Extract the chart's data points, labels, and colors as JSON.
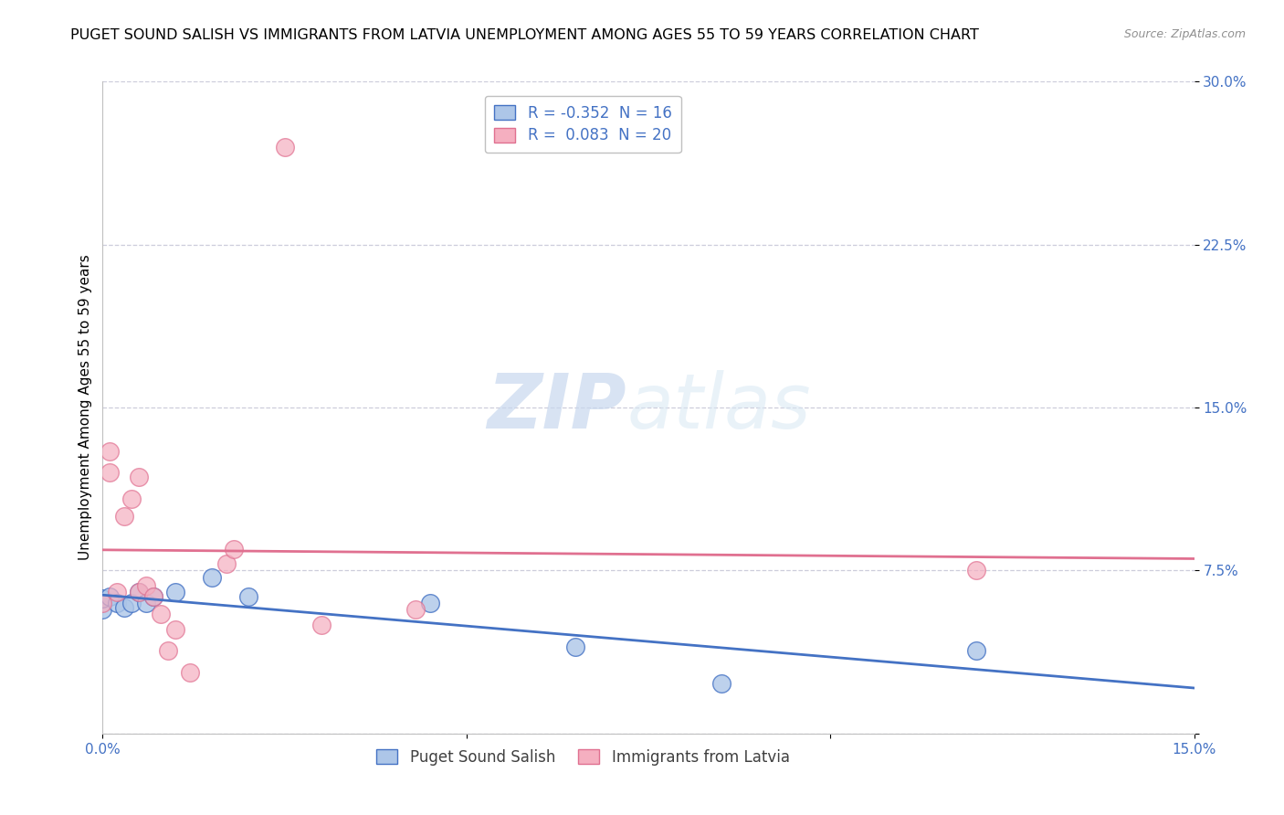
{
  "title": "PUGET SOUND SALISH VS IMMIGRANTS FROM LATVIA UNEMPLOYMENT AMONG AGES 55 TO 59 YEARS CORRELATION CHART",
  "source": "Source: ZipAtlas.com",
  "ylabel": "Unemployment Among Ages 55 to 59 years",
  "xlim": [
    0.0,
    0.15
  ],
  "ylim": [
    0.0,
    0.3
  ],
  "xticks": [
    0.0,
    0.05,
    0.1,
    0.15
  ],
  "xtick_labels": [
    "0.0%",
    "",
    "",
    "15.0%"
  ],
  "yticks": [
    0.0,
    0.075,
    0.15,
    0.225,
    0.3
  ],
  "ytick_labels": [
    "",
    "7.5%",
    "15.0%",
    "22.5%",
    "30.0%"
  ],
  "legend_labels": [
    "Puget Sound Salish",
    "Immigrants from Latvia"
  ],
  "r_blue": -0.352,
  "n_blue": 16,
  "r_pink": 0.083,
  "n_pink": 20,
  "color_blue": "#adc6e8",
  "color_pink": "#f5afc0",
  "line_blue": "#4472c4",
  "line_pink": "#e07090",
  "watermark_zip": "ZIP",
  "watermark_atlas": "atlas",
  "background_color": "#ffffff",
  "grid_color": "#c8c8d8",
  "blue_scatter_x": [
    0.0,
    0.0,
    0.001,
    0.002,
    0.003,
    0.004,
    0.005,
    0.006,
    0.007,
    0.01,
    0.015,
    0.02,
    0.045,
    0.065,
    0.085,
    0.12
  ],
  "blue_scatter_y": [
    0.057,
    0.062,
    0.063,
    0.06,
    0.058,
    0.06,
    0.065,
    0.06,
    0.063,
    0.065,
    0.072,
    0.063,
    0.06,
    0.04,
    0.023,
    0.038
  ],
  "pink_scatter_x": [
    0.0,
    0.001,
    0.001,
    0.002,
    0.003,
    0.004,
    0.005,
    0.005,
    0.006,
    0.007,
    0.008,
    0.009,
    0.01,
    0.012,
    0.017,
    0.018,
    0.025,
    0.03,
    0.043,
    0.12
  ],
  "pink_scatter_y": [
    0.06,
    0.12,
    0.13,
    0.065,
    0.1,
    0.108,
    0.118,
    0.065,
    0.068,
    0.063,
    0.055,
    0.038,
    0.048,
    0.028,
    0.078,
    0.085,
    0.27,
    0.05,
    0.057,
    0.075
  ],
  "title_fontsize": 11.5,
  "axis_label_fontsize": 11,
  "tick_fontsize": 11,
  "legend_fontsize": 12
}
